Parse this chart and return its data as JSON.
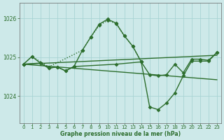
{
  "title": "Graphe pression niveau de la mer (hPa)",
  "bg_color": "#cde9e9",
  "grid_color": "#a8d4d4",
  "line_color": "#2d6e2d",
  "xlim": [
    -0.5,
    23.5
  ],
  "ylim": [
    1023.3,
    1026.4
  ],
  "yticks": [
    1024,
    1025,
    1026
  ],
  "xticks": [
    0,
    1,
    2,
    3,
    4,
    5,
    6,
    7,
    8,
    9,
    10,
    11,
    12,
    13,
    14,
    15,
    16,
    17,
    18,
    19,
    20,
    21,
    22,
    23
  ],
  "series": [
    {
      "x": [
        0,
        1,
        3,
        7,
        8,
        9,
        10,
        11,
        12,
        13,
        14
      ],
      "y": [
        1024.82,
        1025.02,
        1024.75,
        1025.18,
        1025.52,
        1025.82,
        1025.95,
        1025.87,
        1025.55,
        1025.28,
        1024.88
      ],
      "linestyle": ":",
      "marker": "D",
      "markersize": 2.5,
      "linewidth": 1.0
    },
    {
      "x": [
        0,
        1,
        2,
        3,
        4,
        5,
        6,
        7,
        8,
        9,
        10,
        11,
        12,
        13,
        14,
        15,
        16,
        17,
        18,
        19,
        20,
        21,
        22,
        23
      ],
      "y": [
        1024.82,
        1025.02,
        1024.85,
        1024.72,
        1024.75,
        1024.65,
        1024.76,
        1025.18,
        1025.52,
        1025.85,
        1025.98,
        1025.88,
        1025.55,
        1025.28,
        1024.88,
        1024.55,
        1024.52,
        1024.55,
        1024.82,
        1024.6,
        1024.95,
        1024.95,
        1024.92,
        1025.12
      ],
      "linestyle": "-",
      "marker": "D",
      "markersize": 2.5,
      "linewidth": 1.0
    },
    {
      "x": [
        0,
        2,
        3,
        4,
        5,
        6,
        11,
        14,
        15,
        16,
        17,
        18,
        19,
        20,
        21,
        22,
        23
      ],
      "y": [
        1024.82,
        1024.85,
        1024.72,
        1024.75,
        1024.65,
        1024.76,
        1024.82,
        1024.88,
        1023.72,
        1023.65,
        1023.82,
        1024.08,
        1024.52,
        1024.9,
        1024.9,
        1024.9,
        1025.12
      ],
      "linestyle": "-",
      "marker": "D",
      "markersize": 2.5,
      "linewidth": 1.0
    },
    {
      "x": [
        0,
        23
      ],
      "y": [
        1024.82,
        1024.42
      ],
      "linestyle": "-",
      "marker": null,
      "markersize": 0,
      "linewidth": 1.0
    },
    {
      "x": [
        0,
        23
      ],
      "y": [
        1024.82,
        1025.05
      ],
      "linestyle": "-",
      "marker": null,
      "markersize": 0,
      "linewidth": 1.0
    }
  ]
}
